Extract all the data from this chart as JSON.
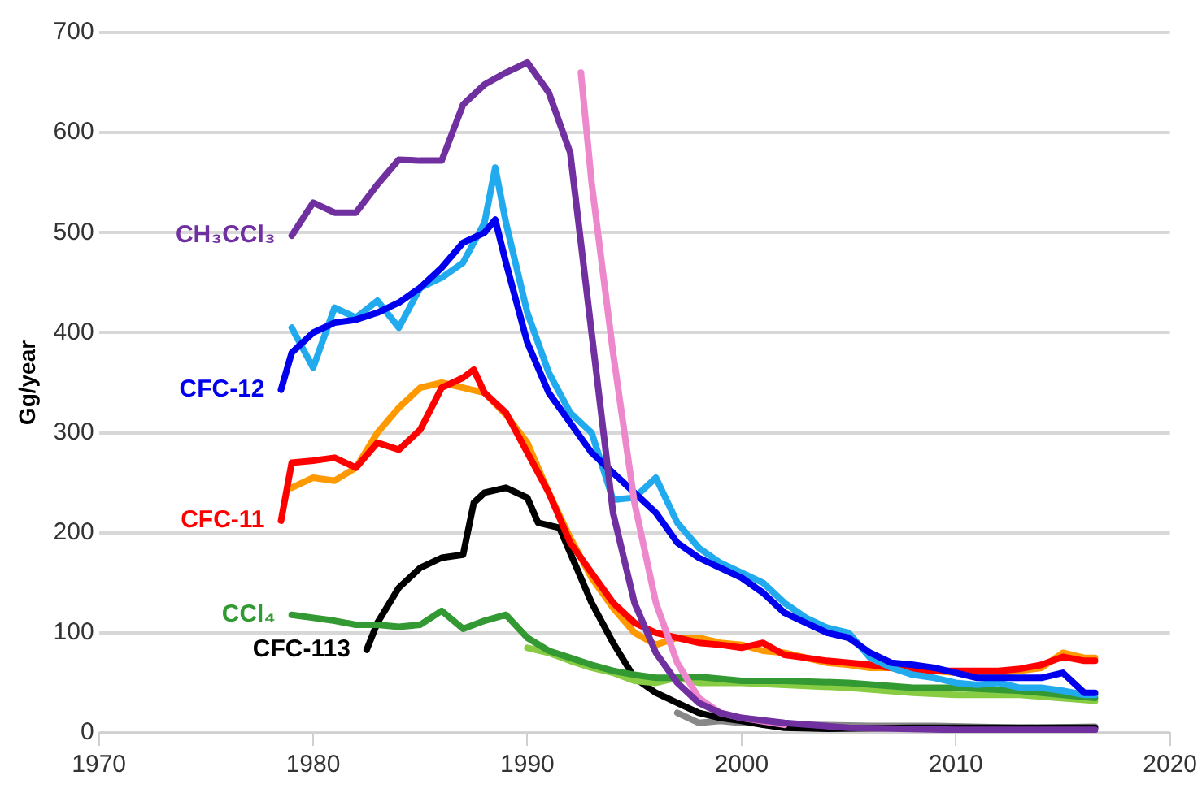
{
  "chart_data": {
    "type": "line",
    "ylabel": "Gg/year",
    "xlim": [
      1970,
      2020
    ],
    "xticks": [
      1970,
      1980,
      1990,
      2000,
      2010,
      2020
    ],
    "ylim": [
      0,
      700
    ],
    "yticks": [
      0,
      100,
      200,
      300,
      400,
      500,
      600,
      700
    ],
    "grid": "y",
    "legend": false,
    "marker": "none",
    "line_style": "solid",
    "series": [
      {
        "name": "CH₃CCl₃",
        "color": "#7030a0",
        "x": [
          1979,
          1980,
          1981,
          1982,
          1983,
          1984,
          1985,
          1986,
          1987,
          1988,
          1989,
          1990,
          1991,
          1992,
          1993,
          1994,
          1995,
          1996,
          1997,
          1998,
          1999,
          2000,
          2002,
          2005,
          2010,
          2016.5
        ],
        "values": [
          497,
          530,
          520,
          520,
          548,
          573,
          572,
          572,
          628,
          648,
          660,
          670,
          640,
          580,
          400,
          220,
          130,
          80,
          50,
          30,
          20,
          15,
          10,
          5,
          3,
          3
        ]
      },
      {
        "color": "#ee88cc",
        "x": [
          1992.5,
          1993,
          1994,
          1995,
          1996,
          1997,
          1998,
          1999,
          2000,
          2002
        ],
        "values": [
          660,
          550,
          380,
          230,
          130,
          70,
          35,
          20,
          15,
          8
        ]
      },
      {
        "name": "CFC-12",
        "color": "#0000ee",
        "x": [
          1978.5,
          1979,
          1980,
          1981,
          1982,
          1983,
          1984,
          1985,
          1986,
          1987,
          1988,
          1988.5,
          1989,
          1990,
          1991,
          1992,
          1993,
          1994,
          1995,
          1996,
          1997,
          1998,
          1999,
          2000,
          2001,
          2002,
          2003,
          2004,
          2005,
          2006,
          2007,
          2008,
          2009,
          2010,
          2011,
          2012,
          2013,
          2014,
          2015,
          2016,
          2016.5
        ],
        "values": [
          343,
          380,
          400,
          410,
          413,
          420,
          430,
          445,
          465,
          490,
          500,
          513,
          470,
          390,
          340,
          310,
          280,
          260,
          240,
          220,
          190,
          175,
          165,
          155,
          140,
          120,
          110,
          100,
          95,
          80,
          70,
          68,
          65,
          60,
          55,
          55,
          55,
          55,
          60,
          40,
          40
        ]
      },
      {
        "color": "#22aaee",
        "x": [
          1979,
          1980,
          1981,
          1982,
          1983,
          1984,
          1985,
          1986,
          1987,
          1988,
          1988.5,
          1989,
          1990,
          1991,
          1992,
          1993,
          1994,
          1995,
          1996,
          1997,
          1998,
          1999,
          2000,
          2001,
          2002,
          2003,
          2004,
          2005,
          2006,
          2007,
          2008,
          2009,
          2010,
          2011,
          2012,
          2013,
          2014,
          2015,
          2016,
          2016.5
        ],
        "values": [
          405,
          365,
          425,
          415,
          432,
          405,
          445,
          455,
          470,
          510,
          565,
          510,
          420,
          360,
          320,
          300,
          233,
          235,
          255,
          210,
          185,
          170,
          160,
          150,
          130,
          115,
          105,
          100,
          75,
          65,
          58,
          55,
          50,
          48,
          50,
          45,
          45,
          42,
          38,
          38
        ]
      },
      {
        "name": "CFC-11",
        "color": "#ff0000",
        "x": [
          1978.5,
          1979,
          1980,
          1981,
          1982,
          1983,
          1984,
          1985,
          1986,
          1987,
          1987.5,
          1988,
          1989,
          1990,
          1991,
          1992,
          1993,
          1994,
          1995,
          1996,
          1997,
          1998,
          1999,
          2000,
          2001,
          2002,
          2003,
          2004,
          2005,
          2006,
          2007,
          2008,
          2009,
          2010,
          2011,
          2012,
          2013,
          2014,
          2015,
          2016,
          2016.5
        ],
        "values": [
          212,
          270,
          272,
          275,
          265,
          290,
          283,
          303,
          345,
          355,
          363,
          340,
          320,
          280,
          240,
          190,
          160,
          130,
          110,
          100,
          95,
          90,
          88,
          85,
          90,
          78,
          75,
          72,
          70,
          68,
          65,
          64,
          62,
          62,
          62,
          62,
          64,
          68,
          76,
          72,
          72
        ]
      },
      {
        "color": "#ff9900",
        "x": [
          1979,
          1980,
          1981,
          1982,
          1983,
          1984,
          1985,
          1986,
          1987,
          1988,
          1989,
          1990,
          1991,
          1992,
          1993,
          1994,
          1995,
          1996,
          1997,
          1998,
          1999,
          2000,
          2001,
          2002,
          2003,
          2004,
          2005,
          2006,
          2007,
          2008,
          2009,
          2010,
          2011,
          2012,
          2013,
          2014,
          2015,
          2016,
          2016.5
        ],
        "values": [
          245,
          255,
          252,
          265,
          300,
          325,
          345,
          350,
          345,
          340,
          318,
          290,
          240,
          195,
          155,
          125,
          100,
          88,
          95,
          95,
          90,
          88,
          82,
          80,
          75,
          70,
          68,
          65,
          65,
          62,
          62,
          60,
          60,
          60,
          62,
          65,
          80,
          75,
          75
        ]
      },
      {
        "name": "CCl₄",
        "color": "#339933",
        "x": [
          1979,
          1980,
          1981,
          1982,
          1983,
          1984,
          1985,
          1986,
          1987,
          1988,
          1989,
          1990,
          1991,
          1992,
          1993,
          1994,
          1995,
          1996,
          1997,
          1998,
          2000,
          2002,
          2005,
          2008,
          2010,
          2013,
          2016.5
        ],
        "values": [
          118,
          115,
          112,
          108,
          108,
          106,
          108,
          122,
          104,
          112,
          118,
          95,
          82,
          75,
          68,
          62,
          58,
          55,
          55,
          56,
          52,
          52,
          50,
          45,
          45,
          42,
          35
        ]
      },
      {
        "color": "#88cc44",
        "x": [
          1990,
          1991,
          1992,
          1993,
          1994,
          1995,
          1996,
          1997,
          1998,
          2000,
          2002,
          2005,
          2008,
          2010,
          2013,
          2016.5
        ],
        "values": [
          85,
          80,
          72,
          65,
          60,
          52,
          50,
          55,
          50,
          50,
          48,
          45,
          40,
          38,
          38,
          32
        ]
      },
      {
        "name": "CFC-113",
        "color": "#000000",
        "x": [
          1982.5,
          1983,
          1984,
          1985,
          1986,
          1987,
          1987.5,
          1988,
          1989,
          1990,
          1990.5,
          1991.5,
          1992,
          1993,
          1994,
          1995,
          1996,
          1997,
          1998,
          1999,
          2000,
          2001,
          2002,
          2004,
          2008,
          2012,
          2016.5
        ],
        "values": [
          83,
          110,
          145,
          165,
          175,
          178,
          230,
          240,
          245,
          235,
          210,
          205,
          180,
          130,
          90,
          55,
          40,
          30,
          20,
          15,
          12,
          8,
          5,
          4,
          5,
          5,
          5
        ]
      },
      {
        "color": "#888888",
        "x": [
          1997,
          1998,
          1999,
          2000,
          2003,
          2006,
          2009,
          2013,
          2016.5
        ],
        "values": [
          20,
          10,
          12,
          10,
          8,
          7,
          7,
          5,
          6
        ]
      }
    ]
  }
}
